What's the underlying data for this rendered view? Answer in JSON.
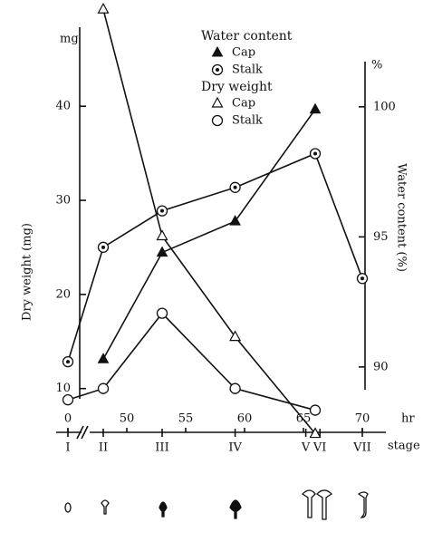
{
  "chart_data": {
    "type": "line",
    "left_unit": "mg",
    "right_unit": "%",
    "x_unit": "hr",
    "stage_label": "stage",
    "ylabel": "Dry weight (mg)",
    "y2label": "Water content (%)",
    "xlim": [
      -1,
      72
    ],
    "x_break": [
      1,
      47
    ],
    "xticks": [
      0,
      50,
      55,
      60,
      65,
      70
    ],
    "ylim": [
      4,
      51
    ],
    "yticks": [
      10,
      20,
      30,
      40
    ],
    "y2lim": [
      87,
      104
    ],
    "y2ticks": [
      90,
      95,
      100
    ],
    "stages": {
      "labels": [
        "I",
        "II",
        "III",
        "IV",
        "V",
        "VI",
        "VII"
      ],
      "x": [
        0,
        48,
        53,
        59.2,
        65.2,
        66.4,
        70
      ]
    },
    "series": [
      {
        "group": "Water content",
        "name": "Cap",
        "marker": "filled-triangle",
        "color": "#111111",
        "axis": "y2",
        "x": [
          48,
          53,
          59.2,
          66
        ],
        "values": [
          90.3,
          94.4,
          95.6,
          99.9
        ]
      },
      {
        "group": "Water content",
        "name": "Stalk",
        "marker": "dotted-circle",
        "color": "#111111",
        "axis": "y2",
        "x": [
          0,
          48,
          53,
          59.2,
          66,
          70
        ],
        "values": [
          90.2,
          94.6,
          96.0,
          96.9,
          98.2,
          93.4
        ]
      },
      {
        "group": "Dry weight",
        "name": "Cap",
        "marker": "open-triangle",
        "color": "#111111",
        "x": [
          48,
          53,
          59.2,
          66
        ],
        "values": [
          50.3,
          26.2,
          15.5,
          5.2
        ]
      },
      {
        "group": "Dry weight",
        "name": "Stalk",
        "marker": "open-circle",
        "color": "#111111",
        "x": [
          0,
          48,
          53,
          59.2,
          66
        ],
        "values": [
          8.8,
          10,
          18,
          10,
          7.7
        ]
      }
    ]
  }
}
